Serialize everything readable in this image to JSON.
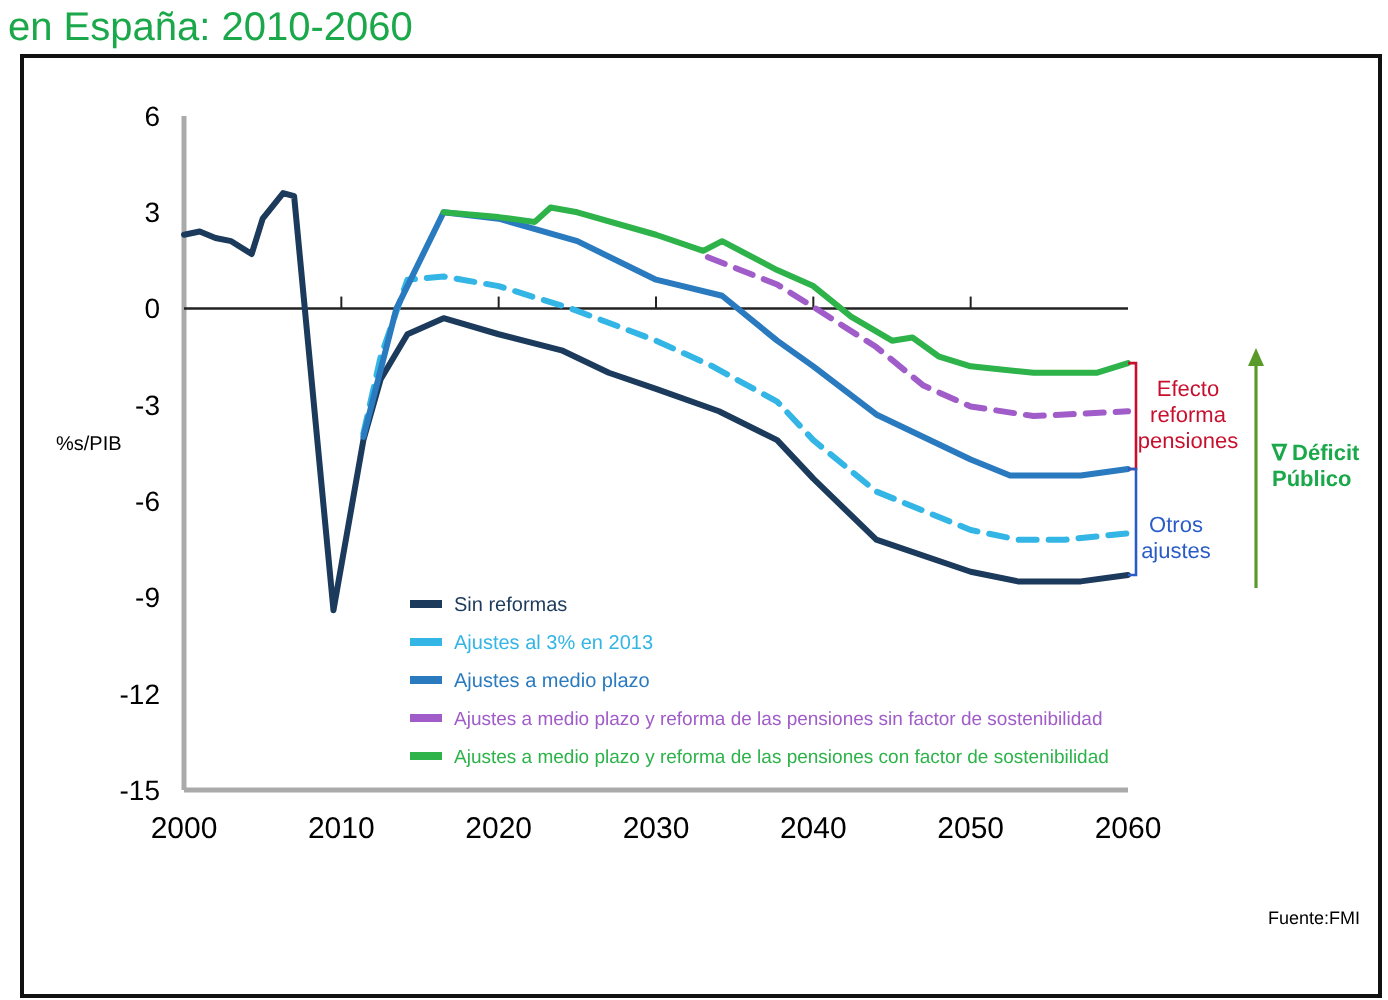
{
  "chart_data": {
    "type": "line",
    "title": "en España: 2010-2060",
    "ylabel": "%s/PIB",
    "xlim": [
      2000,
      2060
    ],
    "xticks": [
      2000,
      2010,
      2020,
      2030,
      2040,
      2050,
      2060
    ],
    "ylim": [
      -15,
      6
    ],
    "yticks": [
      -15,
      -12,
      -9,
      -6,
      -3,
      0,
      3,
      6
    ],
    "grid": false,
    "legend": "bottom",
    "marker": "none",
    "ref_lines": [
      {
        "axis": "y",
        "value": 0,
        "color": "#222222"
      }
    ],
    "annotations": [
      "Efecto reforma pensiones",
      "Otros ajustes",
      "∇ Déficit Público",
      "Fuente:FMI"
    ],
    "series": [
      {
        "name": "Sin reformas",
        "color": "#1b3a5c",
        "line_style": "solid",
        "x": [
          2000,
          2001,
          2002,
          2003,
          2004.3,
          2005,
          2006.3,
          2007,
          2009.5,
          2011.4,
          2012.5,
          2014.2,
          2016.5,
          2020,
          2024,
          2027,
          2030,
          2034,
          2037.7,
          2040,
          2044,
          2050,
          2053,
          2057,
          2060
        ],
        "values": [
          2.3,
          2.4,
          2.2,
          2.1,
          1.7,
          2.8,
          3.6,
          3.5,
          -9.4,
          -4.1,
          -2.2,
          -0.8,
          -0.3,
          -0.8,
          -1.3,
          -2.0,
          -2.5,
          -3.2,
          -4.1,
          -5.3,
          -7.2,
          -8.2,
          -8.5,
          -8.5,
          -8.3
        ]
      },
      {
        "name": "Ajustes al 3% en 2013",
        "color": "#33b5e5",
        "line_style": "dashed",
        "x": [
          2011.4,
          2012.5,
          2014.2,
          2016.5,
          2020,
          2024.6,
          2030,
          2033.6,
          2037.7,
          2040,
          2044,
          2050,
          2053,
          2056,
          2060
        ],
        "values": [
          -3.9,
          -1.5,
          0.9,
          1.0,
          0.7,
          0.0,
          -1.0,
          -1.8,
          -2.9,
          -4.1,
          -5.7,
          -6.9,
          -7.2,
          -7.2,
          -7.0
        ]
      },
      {
        "name": "Ajustes a medio plazo",
        "color": "#2a7abf",
        "line_style": "solid",
        "x": [
          2011.4,
          2013.5,
          2016.5,
          2020,
          2025,
          2030,
          2034.2,
          2037.7,
          2040,
          2044,
          2050,
          2052.5,
          2057,
          2060
        ],
        "values": [
          -4.0,
          0.0,
          3.0,
          2.8,
          2.1,
          0.9,
          0.4,
          -1.0,
          -1.8,
          -3.3,
          -4.7,
          -5.2,
          -5.2,
          -5.0
        ]
      },
      {
        "name": "Ajustes a medio plazo y reforma de las pensiones  sin factor de sostenibilidad",
        "color": "#a05cc8",
        "line_style": "dashed",
        "x": [
          2033.3,
          2037.7,
          2040,
          2044,
          2047,
          2050,
          2054,
          2060
        ],
        "values": [
          1.6,
          0.75,
          0.05,
          -1.2,
          -2.4,
          -3.05,
          -3.35,
          -3.2
        ]
      },
      {
        "name": "Ajustes a medio plazo y reforma de las pensiones  con factor de sostenibilidad",
        "color": "#2db34a",
        "line_style": "solid",
        "x": [
          2016.5,
          2020,
          2022.3,
          2023.3,
          2025,
          2030,
          2033,
          2034.2,
          2037.7,
          2040,
          2042.4,
          2045,
          2046.3,
          2048,
          2050,
          2054,
          2058,
          2060
        ],
        "values": [
          3.0,
          2.85,
          2.7,
          3.15,
          3.0,
          2.3,
          1.8,
          2.1,
          1.2,
          0.7,
          -0.25,
          -1.0,
          -0.9,
          -1.5,
          -1.8,
          -2.0,
          -2.0,
          -1.7
        ]
      }
    ]
  }
}
